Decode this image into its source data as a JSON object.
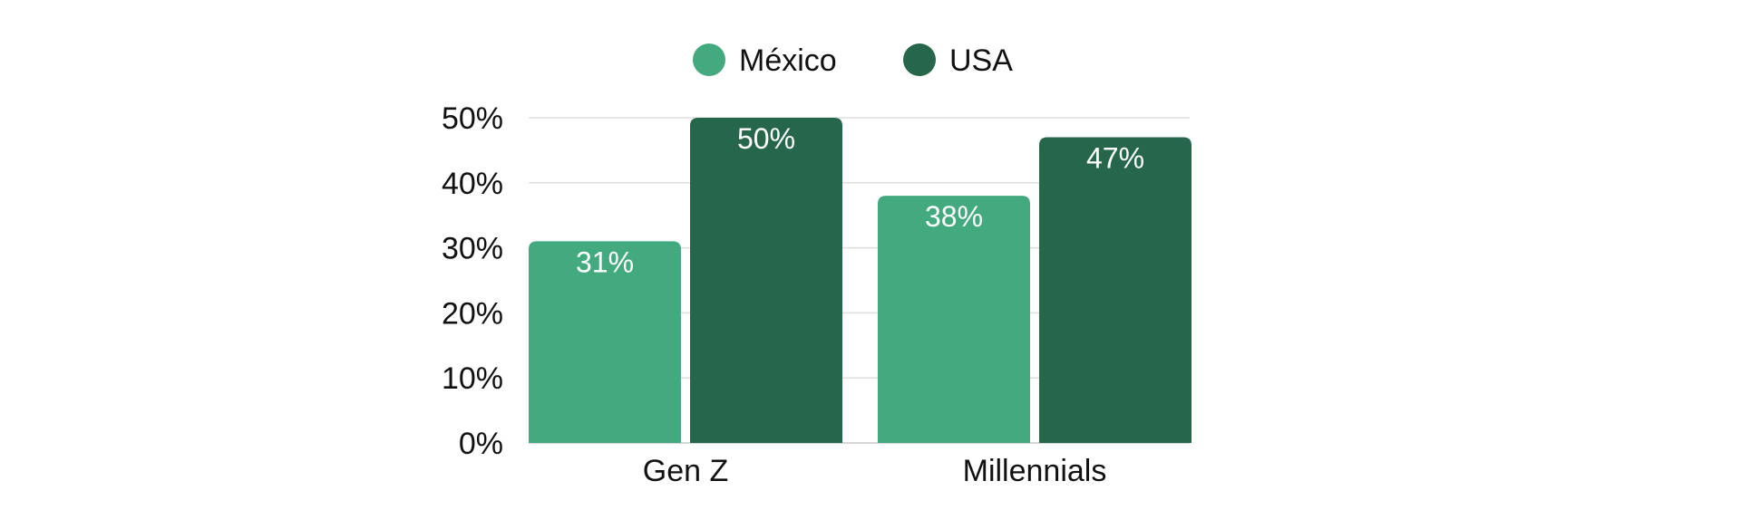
{
  "chart_data": {
    "type": "bar",
    "categories": [
      "Gen Z",
      "Millennials"
    ],
    "series": [
      {
        "name": "México",
        "values": [
          31,
          38
        ],
        "color": "#43a97e"
      },
      {
        "name": "USA",
        "values": [
          50,
          47
        ],
        "color": "#26664a"
      }
    ],
    "value_suffix": "%",
    "ylim": [
      0,
      50
    ],
    "yticks": [
      0,
      10,
      20,
      30,
      40,
      50
    ],
    "ytick_labels": [
      "0%",
      "10%",
      "20%",
      "30%",
      "40%",
      "50%"
    ],
    "grid": true,
    "legend_position": "top-center",
    "data_labels": true
  }
}
